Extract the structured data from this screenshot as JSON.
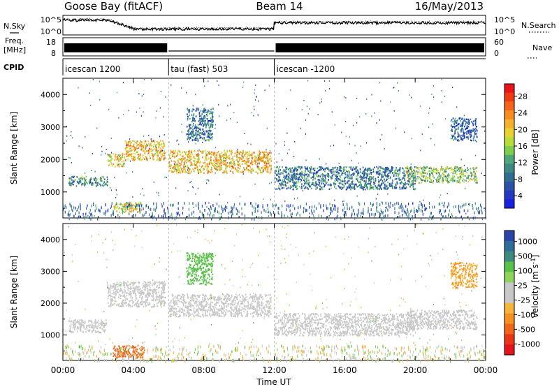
{
  "header": {
    "station": "Goose Bay (fitACF)",
    "beam": "Beam 14",
    "date": "16/May/2013"
  },
  "panels": {
    "nsky": {
      "label": "N.Sky",
      "right_label": "N.Search",
      "ticks_left": [
        "10^5",
        "10^0"
      ],
      "ticks_right": [
        "10^5",
        "10^0"
      ]
    },
    "freq": {
      "label_line1": "Freq.",
      "label_line2": "[MHz]",
      "right_label": "Nave",
      "ticks_left": [
        "18",
        "8"
      ],
      "ticks_right": [
        "60",
        "0"
      ]
    },
    "cpid": {
      "label": "CPID",
      "modes": [
        {
          "name": "icescan 1200",
          "start_hr": 0,
          "end_hr": 6
        },
        {
          "name": "tau (fast) 503",
          "start_hr": 6,
          "end_hr": 12
        },
        {
          "name": "icescan -1200",
          "start_hr": 12,
          "end_hr": 24
        }
      ]
    }
  },
  "colorbars": {
    "power": {
      "title": "Power [dB]",
      "tick_labels": [
        "28",
        "24",
        "20",
        "16",
        "12",
        "8",
        "4"
      ],
      "colors": [
        "#e8141a",
        "#f03a12",
        "#f6621a",
        "#f88c1c",
        "#f5b02c",
        "#e8d232",
        "#b8dc3a",
        "#7fcf4e",
        "#4ea97a",
        "#3c8a80",
        "#306e90",
        "#2a52a8",
        "#2438c0",
        "#1a20e0"
      ]
    },
    "velocity": {
      "title": "Velocity [m s^-1]",
      "tick_labels": [
        "1000",
        "500",
        "100",
        "25",
        "-25",
        "-100",
        "-500",
        "-1000"
      ],
      "colors": [
        "#2a44a8",
        "#2f6c9a",
        "#3d8a7e",
        "#56c248",
        "#8ed45a",
        "#c8c8c8",
        "#c8c8c8",
        "#f5b43a",
        "#f6901e",
        "#f26418",
        "#ea3616",
        "#e4141a"
      ]
    }
  },
  "chart_data": [
    {
      "type": "heatmap",
      "name": "power",
      "ylabel": "Slant Range [km]",
      "ylim": [
        200,
        4500
      ],
      "yticks": [
        1000,
        2000,
        3000,
        4000
      ],
      "xlim_hours": [
        0,
        24
      ],
      "value_units": "dB",
      "value_range": [
        0,
        30
      ],
      "echo_bands": [
        {
          "t0": 0.3,
          "t1": 2.5,
          "r0": 1200,
          "r1": 1500,
          "value": 10
        },
        {
          "t0": 2.5,
          "t1": 3.5,
          "r0": 1800,
          "r1": 2200,
          "value": 18
        },
        {
          "t0": 3.5,
          "t1": 5.8,
          "r0": 2000,
          "r1": 2600,
          "value": 20
        },
        {
          "t0": 2.8,
          "t1": 4.5,
          "r0": 400,
          "r1": 700,
          "value": 18
        },
        {
          "t0": 6.0,
          "t1": 11.8,
          "r0": 1600,
          "r1": 2300,
          "value": 20
        },
        {
          "t0": 7.0,
          "t1": 8.5,
          "r0": 2600,
          "r1": 3600,
          "value": 8
        },
        {
          "t0": 12.0,
          "t1": 20.0,
          "r0": 1100,
          "r1": 1800,
          "value": 8
        },
        {
          "t0": 19.5,
          "t1": 23.5,
          "r0": 1300,
          "r1": 1800,
          "value": 14
        },
        {
          "t0": 22.0,
          "t1": 23.5,
          "r0": 2600,
          "r1": 3300,
          "value": 6
        }
      ]
    },
    {
      "type": "heatmap",
      "name": "velocity",
      "ylabel": "Slant Range [km]",
      "xlabel": "Time UT",
      "ylim": [
        200,
        4500
      ],
      "yticks": [
        1000,
        2000,
        3000,
        4000
      ],
      "xlim_hours": [
        0,
        24
      ],
      "xticks": [
        "00:00",
        "04:00",
        "08:00",
        "12:00",
        "16:00",
        "20:00",
        "00:00"
      ],
      "value_units": "m s^-1",
      "value_range": [
        -1000,
        1000
      ],
      "echo_bands": [
        {
          "t0": 0.3,
          "t1": 2.5,
          "r0": 1100,
          "r1": 1500,
          "value": 0
        },
        {
          "t0": 2.5,
          "t1": 5.8,
          "r0": 1900,
          "r1": 2700,
          "value": 0
        },
        {
          "t0": 2.8,
          "t1": 4.6,
          "r0": 300,
          "r1": 700,
          "value": -300
        },
        {
          "t0": 6.0,
          "t1": 11.8,
          "r0": 1600,
          "r1": 2300,
          "value": 0
        },
        {
          "t0": 7.0,
          "t1": 8.5,
          "r0": 2600,
          "r1": 3600,
          "value": 80
        },
        {
          "t0": 12.0,
          "t1": 20.0,
          "r0": 1000,
          "r1": 1700,
          "value": 0
        },
        {
          "t0": 19.5,
          "t1": 23.5,
          "r0": 1200,
          "r1": 1800,
          "value": 0
        },
        {
          "t0": 22.0,
          "t1": 23.5,
          "r0": 2500,
          "r1": 3300,
          "value": -60
        }
      ]
    }
  ]
}
